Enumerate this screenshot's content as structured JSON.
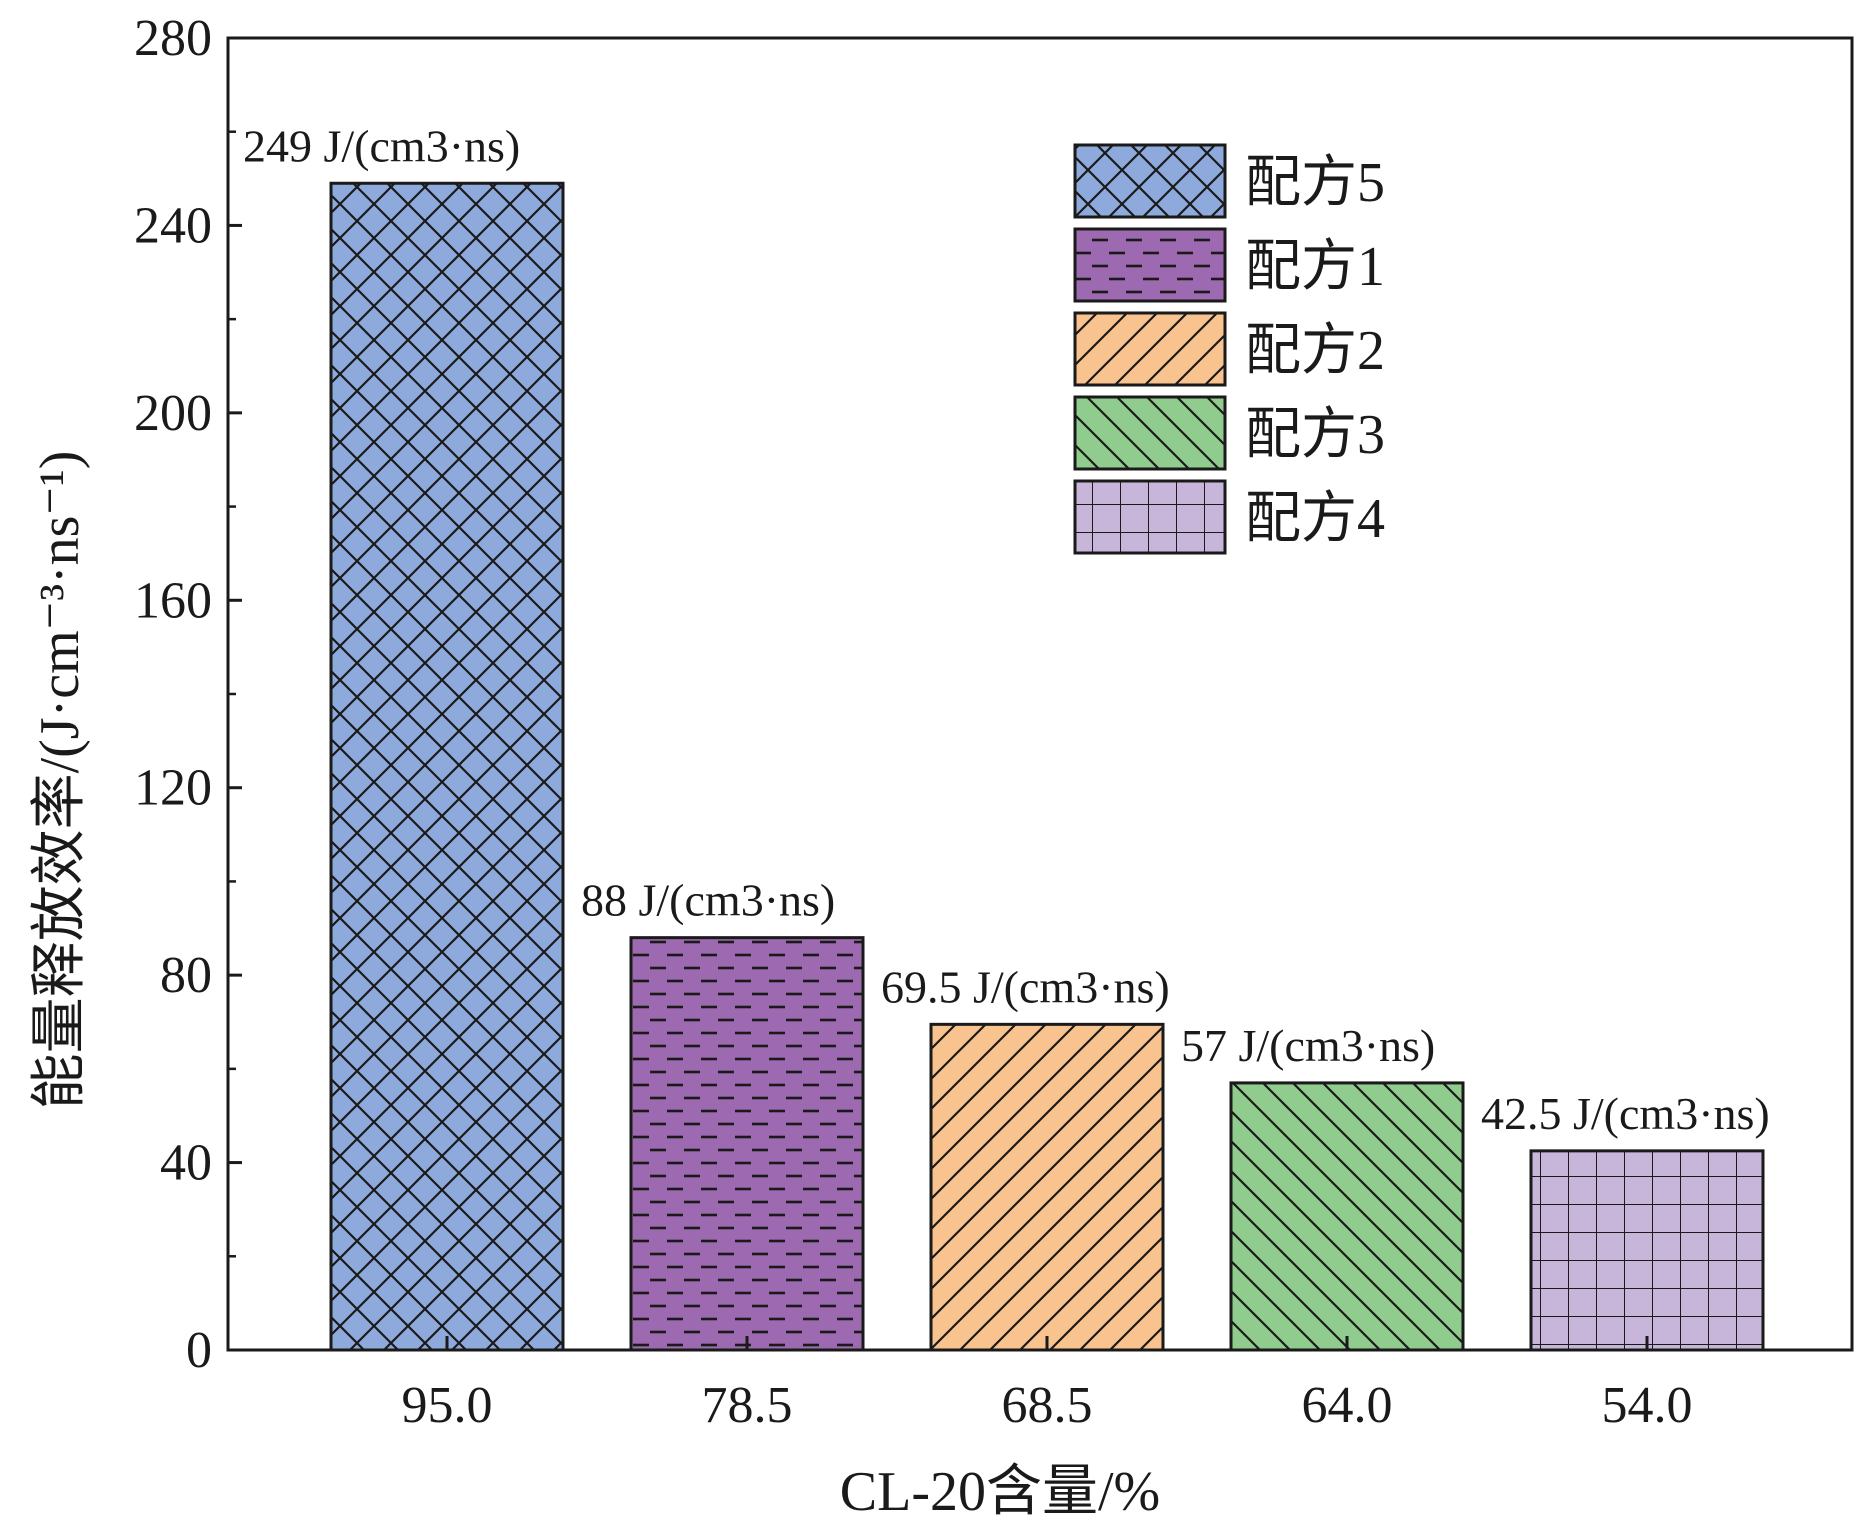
{
  "chart_data": {
    "type": "bar",
    "xlabel": "CL-20含量/%",
    "ylabel": "能量释放效率/(J·cm⁻³·ns⁻¹)",
    "ylim": [
      0,
      280
    ],
    "yticks": [
      "0",
      "40",
      "80",
      "120",
      "160",
      "200",
      "240",
      "280"
    ],
    "grid": false,
    "legend_position": "top-right",
    "bars": [
      {
        "category": "95.0",
        "value": 249,
        "label": "249 J/(cm3·ns)",
        "legend": "配方5",
        "color": "#8ea9db",
        "pattern": "crosshatch"
      },
      {
        "category": "78.5",
        "value": 88,
        "label": "88 J/(cm3·ns)",
        "legend": "配方1",
        "color": "#9d69b0",
        "pattern": "dashes"
      },
      {
        "category": "68.5",
        "value": 69.5,
        "label": "69.5 J/(cm3·ns)",
        "legend": "配方2",
        "color": "#f9c38f",
        "pattern": "diag-up"
      },
      {
        "category": "64.0",
        "value": 57,
        "label": "57 J/(cm3·ns)",
        "legend": "配方3",
        "color": "#90cc8e",
        "pattern": "diag-down"
      },
      {
        "category": "54.0",
        "value": 42.5,
        "label": "42.5 J/(cm3·ns)",
        "legend": "配方4",
        "color": "#c8b6da",
        "pattern": "grid"
      }
    ],
    "legend_order": [
      0,
      1,
      2,
      3,
      4
    ]
  }
}
